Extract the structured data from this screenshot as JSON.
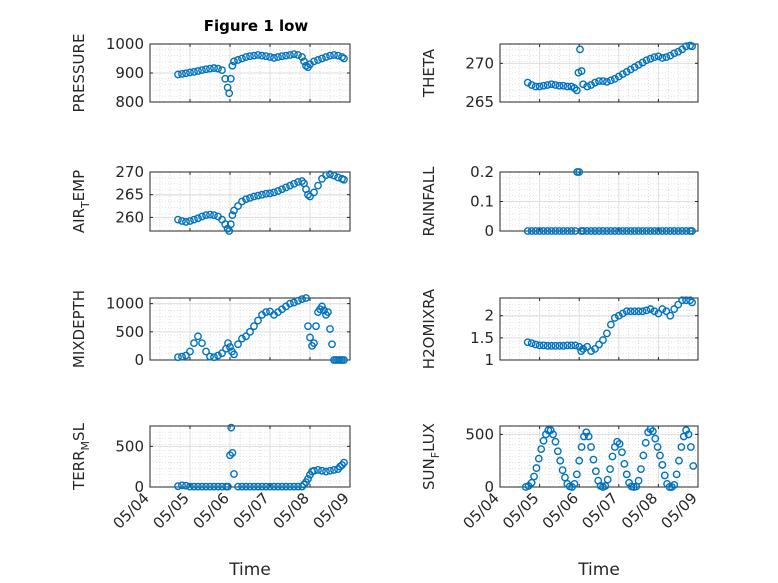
{
  "figure": {
    "title": "Figure 1 low",
    "marker_color": "#0072BD",
    "time_ticks": [
      "05/04",
      "05/05",
      "05/06",
      "05/07",
      "05/08",
      "05/09"
    ]
  },
  "chart_data": [
    {
      "type": "scatter",
      "id": "pressure",
      "title": "Figure 1 low",
      "ylabel_main": "PRESSURE",
      "ylabel_sub": "",
      "ylabel_tail": "",
      "xlabel": "",
      "ylim": [
        800,
        1000
      ],
      "yticks": [
        "800",
        "900",
        "1000"
      ],
      "xlim": [
        0,
        5
      ],
      "grid": true,
      "x": [
        0.7,
        0.8,
        0.9,
        1.0,
        1.1,
        1.2,
        1.3,
        1.4,
        1.5,
        1.6,
        1.7,
        1.8,
        1.88,
        1.94,
        1.98,
        2.02,
        2.06,
        2.1,
        2.2,
        2.3,
        2.4,
        2.5,
        2.6,
        2.7,
        2.8,
        2.9,
        3.0,
        3.1,
        3.2,
        3.3,
        3.4,
        3.5,
        3.6,
        3.7,
        3.8,
        3.85,
        3.9,
        3.95,
        4.0,
        4.1,
        4.2,
        4.3,
        4.4,
        4.5,
        4.6,
        4.7,
        4.8,
        4.85
      ],
      "y": [
        895,
        897,
        899,
        902,
        904,
        907,
        910,
        913,
        915,
        917,
        915,
        910,
        880,
        850,
        830,
        880,
        925,
        940,
        945,
        950,
        955,
        958,
        960,
        962,
        960,
        958,
        955,
        952,
        955,
        958,
        960,
        962,
        965,
        962,
        955,
        940,
        925,
        920,
        930,
        940,
        945,
        950,
        955,
        960,
        962,
        960,
        955,
        950
      ]
    },
    {
      "type": "scatter",
      "id": "theta",
      "title": "",
      "ylabel_main": "THETA",
      "ylabel_sub": "",
      "ylabel_tail": "",
      "xlabel": "",
      "ylim": [
        265,
        272.5
      ],
      "yticks": [
        "265",
        "270"
      ],
      "xlim": [
        0,
        5
      ],
      "grid": true,
      "x": [
        0.7,
        0.8,
        0.9,
        1.0,
        1.1,
        1.2,
        1.3,
        1.4,
        1.5,
        1.6,
        1.7,
        1.8,
        1.88,
        1.94,
        1.98,
        2.02,
        2.06,
        2.1,
        2.2,
        2.3,
        2.4,
        2.5,
        2.6,
        2.7,
        2.8,
        2.9,
        3.0,
        3.1,
        3.2,
        3.3,
        3.4,
        3.5,
        3.6,
        3.7,
        3.8,
        3.9,
        4.0,
        4.1,
        4.2,
        4.3,
        4.4,
        4.5,
        4.6,
        4.7,
        4.8,
        4.85
      ],
      "y": [
        267.5,
        267.2,
        267.0,
        267.0,
        267.1,
        267.2,
        267.3,
        267.2,
        267.1,
        267.1,
        267.0,
        267.0,
        266.8,
        266.5,
        268.8,
        271.8,
        269.0,
        267.3,
        267.0,
        267.2,
        267.5,
        267.7,
        267.7,
        267.6,
        267.8,
        268.0,
        268.3,
        268.6,
        268.9,
        269.2,
        269.5,
        269.8,
        270.1,
        270.4,
        270.6,
        270.8,
        270.9,
        270.7,
        270.8,
        271.0,
        271.3,
        271.5,
        271.8,
        272.2,
        272.3,
        272.2
      ]
    },
    {
      "type": "scatter",
      "id": "air_temp",
      "title": "",
      "ylabel_main": "AIR",
      "ylabel_sub": "T",
      "ylabel_tail": "EMP",
      "xlabel": "",
      "ylim": [
        257,
        270
      ],
      "yticks": [
        "260",
        "265",
        "270"
      ],
      "xlim": [
        0,
        5
      ],
      "grid": true,
      "x": [
        0.7,
        0.8,
        0.9,
        1.0,
        1.1,
        1.2,
        1.3,
        1.4,
        1.5,
        1.6,
        1.7,
        1.8,
        1.88,
        1.94,
        1.98,
        2.02,
        2.06,
        2.1,
        2.2,
        2.3,
        2.4,
        2.5,
        2.6,
        2.7,
        2.8,
        2.9,
        3.0,
        3.1,
        3.2,
        3.3,
        3.4,
        3.5,
        3.6,
        3.7,
        3.8,
        3.85,
        3.9,
        3.95,
        4.0,
        4.1,
        4.2,
        4.3,
        4.4,
        4.5,
        4.6,
        4.7,
        4.8,
        4.85
      ],
      "y": [
        259.5,
        259.2,
        259.0,
        259.2,
        259.5,
        259.8,
        260.2,
        260.5,
        260.6,
        260.5,
        260.2,
        259.5,
        258.5,
        257.5,
        257.0,
        258.5,
        260.5,
        261.5,
        262.5,
        263.5,
        264.0,
        264.3,
        264.6,
        264.8,
        265.0,
        265.2,
        265.3,
        265.5,
        265.8,
        266.2,
        266.6,
        267.0,
        267.4,
        267.8,
        268.0,
        267.5,
        266.2,
        265.0,
        264.6,
        265.5,
        267.0,
        268.5,
        269.3,
        269.5,
        269.2,
        268.8,
        268.5,
        268.3
      ]
    },
    {
      "type": "scatter",
      "id": "rainfall",
      "title": "",
      "ylabel_main": "RAINFALL",
      "ylabel_sub": "",
      "ylabel_tail": "",
      "xlabel": "",
      "ylim": [
        0,
        0.2
      ],
      "yticks": [
        "0",
        "0.1",
        "0.2"
      ],
      "xlim": [
        0,
        5
      ],
      "grid": true,
      "x": [
        0.7,
        0.8,
        0.9,
        1.0,
        1.1,
        1.2,
        1.3,
        1.4,
        1.5,
        1.6,
        1.7,
        1.8,
        1.9,
        1.95,
        2.0,
        2.05,
        2.1,
        2.2,
        2.3,
        2.4,
        2.5,
        2.6,
        2.7,
        2.8,
        2.9,
        3.0,
        3.1,
        3.2,
        3.3,
        3.4,
        3.5,
        3.6,
        3.7,
        3.8,
        3.9,
        4.0,
        4.1,
        4.2,
        4.3,
        4.4,
        4.5,
        4.6,
        4.7,
        4.8,
        4.85
      ],
      "y": [
        0,
        0,
        0,
        0,
        0,
        0,
        0,
        0,
        0,
        0,
        0,
        0,
        0,
        0.2,
        0.2,
        0,
        0,
        0,
        0,
        0,
        0,
        0,
        0,
        0,
        0,
        0,
        0,
        0,
        0,
        0,
        0,
        0,
        0,
        0,
        0,
        0,
        0,
        0,
        0,
        0,
        0,
        0,
        0,
        0,
        0
      ]
    },
    {
      "type": "scatter",
      "id": "mixdepth",
      "title": "",
      "ylabel_main": "MIXDEPTH",
      "ylabel_sub": "",
      "ylabel_tail": "",
      "xlabel": "",
      "ylim": [
        0,
        1100
      ],
      "yticks": [
        "0",
        "500",
        "1000"
      ],
      "xlim": [
        0,
        5
      ],
      "grid": true,
      "x": [
        0.7,
        0.8,
        0.9,
        1.0,
        1.1,
        1.2,
        1.3,
        1.4,
        1.5,
        1.6,
        1.7,
        1.8,
        1.9,
        1.95,
        2.0,
        2.05,
        2.1,
        2.2,
        2.3,
        2.4,
        2.5,
        2.6,
        2.7,
        2.8,
        2.9,
        3.0,
        3.1,
        3.2,
        3.3,
        3.4,
        3.5,
        3.6,
        3.7,
        3.8,
        3.9,
        3.95,
        4.0,
        4.05,
        4.1,
        4.15,
        4.2,
        4.25,
        4.3,
        4.35,
        4.4,
        4.45,
        4.5,
        4.55,
        4.6,
        4.65,
        4.7,
        4.75,
        4.8,
        4.85
      ],
      "y": [
        50,
        60,
        80,
        150,
        300,
        420,
        300,
        150,
        60,
        50,
        80,
        120,
        200,
        300,
        230,
        150,
        100,
        280,
        380,
        420,
        500,
        600,
        700,
        800,
        850,
        860,
        800,
        850,
        900,
        950,
        1000,
        1020,
        1050,
        1080,
        1100,
        600,
        400,
        250,
        300,
        600,
        850,
        900,
        950,
        880,
        800,
        850,
        550,
        280,
        0,
        0,
        0,
        0,
        0,
        0
      ]
    },
    {
      "type": "scatter",
      "id": "h2omixra",
      "title": "",
      "ylabel_main": "H2OMIXRA",
      "ylabel_sub": "",
      "ylabel_tail": "",
      "xlabel": "",
      "ylim": [
        1,
        2.4
      ],
      "yticks": [
        "1",
        "1.5",
        "2"
      ],
      "xlim": [
        0,
        5
      ],
      "grid": true,
      "x": [
        0.7,
        0.8,
        0.9,
        1.0,
        1.1,
        1.2,
        1.3,
        1.4,
        1.5,
        1.6,
        1.7,
        1.8,
        1.9,
        2.0,
        2.05,
        2.1,
        2.2,
        2.3,
        2.4,
        2.5,
        2.6,
        2.7,
        2.8,
        2.9,
        3.0,
        3.1,
        3.2,
        3.3,
        3.4,
        3.5,
        3.6,
        3.7,
        3.8,
        3.9,
        4.0,
        4.1,
        4.2,
        4.3,
        4.4,
        4.5,
        4.6,
        4.7,
        4.8,
        4.85
      ],
      "y": [
        1.4,
        1.38,
        1.35,
        1.33,
        1.33,
        1.32,
        1.32,
        1.32,
        1.32,
        1.32,
        1.33,
        1.33,
        1.33,
        1.3,
        1.2,
        1.25,
        1.3,
        1.2,
        1.25,
        1.35,
        1.45,
        1.6,
        1.8,
        1.95,
        2.0,
        2.05,
        2.1,
        2.1,
        2.1,
        2.1,
        2.1,
        2.12,
        2.15,
        2.1,
        2.05,
        2.15,
        2.1,
        2.0,
        2.15,
        2.25,
        2.35,
        2.35,
        2.35,
        2.3
      ]
    },
    {
      "type": "scatter",
      "id": "terr_msl",
      "title": "",
      "ylabel_main": "TERR",
      "ylabel_sub": "M",
      "ylabel_tail": "SL",
      "xlabel": "Time",
      "ylim": [
        0,
        750
      ],
      "yticks": [
        "0",
        "500"
      ],
      "xlim": [
        0,
        5
      ],
      "grid": true,
      "x": [
        0.7,
        0.8,
        0.9,
        1.0,
        1.1,
        1.2,
        1.3,
        1.4,
        1.5,
        1.6,
        1.7,
        1.8,
        1.9,
        1.95,
        2.0,
        2.03,
        2.06,
        2.1,
        2.2,
        2.3,
        2.4,
        2.5,
        2.6,
        2.7,
        2.8,
        2.9,
        3.0,
        3.1,
        3.2,
        3.3,
        3.4,
        3.5,
        3.6,
        3.7,
        3.8,
        3.85,
        3.9,
        3.95,
        4.0,
        4.05,
        4.1,
        4.2,
        4.3,
        4.4,
        4.5,
        4.6,
        4.7,
        4.75,
        4.8,
        4.85
      ],
      "y": [
        10,
        20,
        15,
        5,
        5,
        5,
        5,
        5,
        5,
        5,
        5,
        5,
        5,
        5,
        390,
        730,
        420,
        160,
        5,
        5,
        5,
        5,
        5,
        5,
        5,
        5,
        5,
        5,
        5,
        5,
        5,
        5,
        5,
        5,
        5,
        30,
        60,
        100,
        150,
        190,
        200,
        210,
        200,
        190,
        200,
        210,
        220,
        250,
        270,
        300
      ]
    },
    {
      "type": "scatter",
      "id": "sun_flux",
      "title": "",
      "ylabel_main": "SUN",
      "ylabel_sub": "F",
      "ylabel_tail": "LUX",
      "xlabel": "Time",
      "ylim": [
        0,
        580
      ],
      "yticks": [
        "0",
        "500"
      ],
      "xlim": [
        0,
        5
      ],
      "grid": true,
      "x": [
        0.65,
        0.72,
        0.8,
        0.86,
        0.92,
        0.98,
        1.04,
        1.1,
        1.16,
        1.22,
        1.28,
        1.34,
        1.4,
        1.46,
        1.52,
        1.58,
        1.64,
        1.7,
        1.76,
        1.82,
        1.88,
        1.94,
        2.0,
        2.06,
        2.12,
        2.18,
        2.24,
        2.3,
        2.36,
        2.42,
        2.48,
        2.54,
        2.6,
        2.66,
        2.72,
        2.78,
        2.84,
        2.9,
        2.96,
        3.02,
        3.08,
        3.14,
        3.2,
        3.26,
        3.32,
        3.38,
        3.44,
        3.5,
        3.56,
        3.62,
        3.68,
        3.74,
        3.8,
        3.86,
        3.92,
        3.98,
        4.04,
        4.1,
        4.16,
        4.22,
        4.28,
        4.34,
        4.4,
        4.46,
        4.52,
        4.58,
        4.64,
        4.7,
        4.76,
        4.82,
        4.88
      ],
      "y": [
        0,
        10,
        40,
        100,
        180,
        270,
        360,
        440,
        500,
        540,
        540,
        500,
        430,
        340,
        250,
        160,
        90,
        30,
        5,
        0,
        30,
        120,
        250,
        380,
        480,
        520,
        480,
        380,
        260,
        150,
        60,
        10,
        0,
        10,
        70,
        170,
        290,
        380,
        430,
        410,
        330,
        220,
        120,
        40,
        5,
        0,
        5,
        60,
        170,
        300,
        420,
        520,
        550,
        530,
        460,
        380,
        300,
        210,
        110,
        30,
        0,
        0,
        20,
        120,
        250,
        380,
        480,
        540,
        500,
        380,
        200
      ]
    }
  ]
}
